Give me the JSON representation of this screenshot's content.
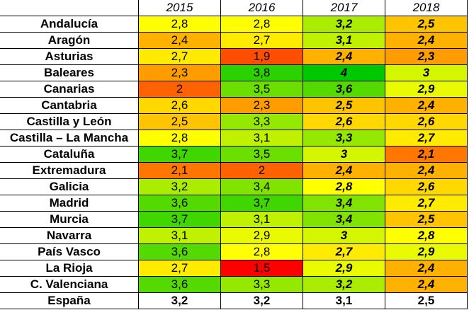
{
  "years": [
    "2015",
    "2016",
    "2017",
    "2018"
  ],
  "bold_italic_years": [
    "2017",
    "2018"
  ],
  "color_scale": {
    "min": 1.5,
    "mid": 2.8,
    "max": 4.0,
    "min_color": "#ff0000",
    "mid_color": "#ffff00",
    "max_color": "#00c800"
  },
  "rows": [
    {
      "region": "Andalucía",
      "values": [
        "2,8",
        "2,8",
        "3,2",
        "2,5"
      ]
    },
    {
      "region": "Aragón",
      "values": [
        "2,4",
        "2,7",
        "3,1",
        "2,4"
      ]
    },
    {
      "region": "Asturias",
      "values": [
        "2,7",
        "1,9",
        "2,4",
        "2,3"
      ]
    },
    {
      "region": "Baleares",
      "values": [
        "2,3",
        "3,8",
        "4",
        "3"
      ]
    },
    {
      "region": "Canarias",
      "values": [
        "2",
        "3,5",
        "3,6",
        "2,9"
      ]
    },
    {
      "region": "Cantabria",
      "values": [
        "2,6",
        "2,3",
        "2,5",
        "2,4"
      ]
    },
    {
      "region": "Castilla y León",
      "values": [
        "2,5",
        "3,3",
        "2,6",
        "2,6"
      ]
    },
    {
      "region": "Castilla – La Mancha",
      "values": [
        "2,8",
        "3,1",
        "3,3",
        "2,7"
      ]
    },
    {
      "region": "Cataluña",
      "values": [
        "3,7",
        "3,5",
        "3",
        "2,1"
      ]
    },
    {
      "region": "Extremadura",
      "values": [
        "2,1",
        "2",
        "2,4",
        "2,4"
      ]
    },
    {
      "region": "Galicia",
      "values": [
        "3,2",
        "3,4",
        "2,8",
        "2,6"
      ]
    },
    {
      "region": "Madrid",
      "values": [
        "3,6",
        "3,7",
        "3,4",
        "2,7"
      ]
    },
    {
      "region": "Murcia",
      "values": [
        "3,7",
        "3,1",
        "3,4",
        "2,5"
      ]
    },
    {
      "region": "Navarra",
      "values": [
        "3,1",
        "2,9",
        "3",
        "2,8"
      ]
    },
    {
      "region": "País Vasco",
      "values": [
        "3,6",
        "2,8",
        "2,7",
        "2,9"
      ]
    },
    {
      "region": "La Rioja",
      "values": [
        "2,7",
        "1,5",
        "2,9",
        "2,4"
      ]
    },
    {
      "region": "C. Valenciana",
      "values": [
        "3,6",
        "3,3",
        "3,2",
        "2,4"
      ]
    }
  ],
  "total": {
    "region": "España",
    "values": [
      "3,2",
      "3,2",
      "3,1",
      "2,5"
    ]
  }
}
